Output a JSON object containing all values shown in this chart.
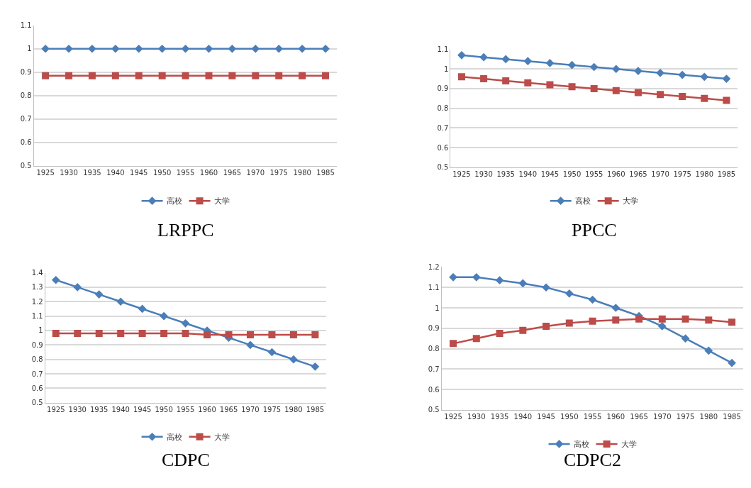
{
  "chart_data": [
    {
      "type": "line",
      "title": "LRPPC",
      "categories": [
        "1925",
        "1930",
        "1935",
        "1940",
        "1945",
        "1950",
        "1955",
        "1960",
        "1965",
        "1970",
        "1975",
        "1980",
        "1985"
      ],
      "ylim": [
        0.5,
        1.1
      ],
      "yticks": [
        0.5,
        0.6,
        0.7,
        0.8,
        0.9,
        1,
        1.1
      ],
      "grid": "y",
      "legend": "bottom",
      "line_style": "solid",
      "series": [
        {
          "name": "高校",
          "color": "#4a7ebb",
          "marker": "diamond",
          "values": [
            1,
            1,
            1,
            1,
            1,
            1,
            1,
            1,
            1,
            1,
            1,
            1,
            1
          ]
        },
        {
          "name": "大学",
          "color": "#be4b48",
          "marker": "square",
          "values": [
            0.885,
            0.885,
            0.885,
            0.885,
            0.885,
            0.885,
            0.885,
            0.885,
            0.885,
            0.885,
            0.885,
            0.885,
            0.885
          ]
        }
      ]
    },
    {
      "type": "line",
      "title": "PPCC",
      "categories": [
        "1925",
        "1930",
        "1935",
        "1940",
        "1945",
        "1950",
        "1955",
        "1960",
        "1965",
        "1970",
        "1975",
        "1980",
        "1985"
      ],
      "ylim": [
        0.5,
        1.1
      ],
      "yticks": [
        0.5,
        0.6,
        0.7,
        0.8,
        0.9,
        1,
        1.1
      ],
      "grid": "y",
      "legend": "bottom",
      "line_style": "solid",
      "series": [
        {
          "name": "高校",
          "color": "#4a7ebb",
          "marker": "diamond",
          "values": [
            1.07,
            1.06,
            1.05,
            1.04,
            1.03,
            1.02,
            1.01,
            1.0,
            0.99,
            0.98,
            0.97,
            0.96,
            0.95
          ]
        },
        {
          "name": "大学",
          "color": "#be4b48",
          "marker": "square",
          "values": [
            0.96,
            0.95,
            0.94,
            0.93,
            0.92,
            0.91,
            0.9,
            0.89,
            0.88,
            0.87,
            0.86,
            0.85,
            0.84
          ]
        }
      ]
    },
    {
      "type": "line",
      "title": "CDPC",
      "categories": [
        "1925",
        "1930",
        "1935",
        "1940",
        "1945",
        "1950",
        "1955",
        "1960",
        "1965",
        "1970",
        "1975",
        "1980",
        "1985"
      ],
      "ylim": [
        0.5,
        1.4
      ],
      "yticks": [
        0.5,
        0.6,
        0.7,
        0.8,
        0.9,
        1,
        1.1,
        1.2,
        1.3,
        1.4
      ],
      "grid": "y",
      "legend": "bottom",
      "line_style": "solid",
      "series": [
        {
          "name": "高校",
          "color": "#4a7ebb",
          "marker": "diamond",
          "values": [
            1.35,
            1.3,
            1.25,
            1.2,
            1.15,
            1.1,
            1.05,
            1.0,
            0.95,
            0.9,
            0.85,
            0.8,
            0.75
          ]
        },
        {
          "name": "大学",
          "color": "#be4b48",
          "marker": "square",
          "values": [
            0.98,
            0.98,
            0.98,
            0.98,
            0.98,
            0.98,
            0.98,
            0.97,
            0.97,
            0.97,
            0.97,
            0.97,
            0.97
          ]
        }
      ]
    },
    {
      "type": "line",
      "title": "CDPC2",
      "categories": [
        "1925",
        "1930",
        "1935",
        "1940",
        "1945",
        "1950",
        "1955",
        "1960",
        "1965",
        "1970",
        "1975",
        "1980",
        "1985"
      ],
      "ylim": [
        0.5,
        1.2
      ],
      "yticks": [
        0.5,
        0.6,
        0.7,
        0.8,
        0.9,
        1,
        1.1,
        1.2
      ],
      "grid": "y",
      "legend": "bottom",
      "line_style": "solid",
      "series": [
        {
          "name": "高校",
          "color": "#4a7ebb",
          "marker": "diamond",
          "values": [
            1.15,
            1.15,
            1.135,
            1.12,
            1.1,
            1.07,
            1.04,
            1.0,
            0.96,
            0.91,
            0.85,
            0.79,
            0.73
          ]
        },
        {
          "name": "大学",
          "color": "#be4b48",
          "marker": "square",
          "values": [
            0.825,
            0.85,
            0.875,
            0.89,
            0.91,
            0.925,
            0.935,
            0.94,
            0.945,
            0.945,
            0.945,
            0.94,
            0.93
          ]
        }
      ]
    }
  ]
}
